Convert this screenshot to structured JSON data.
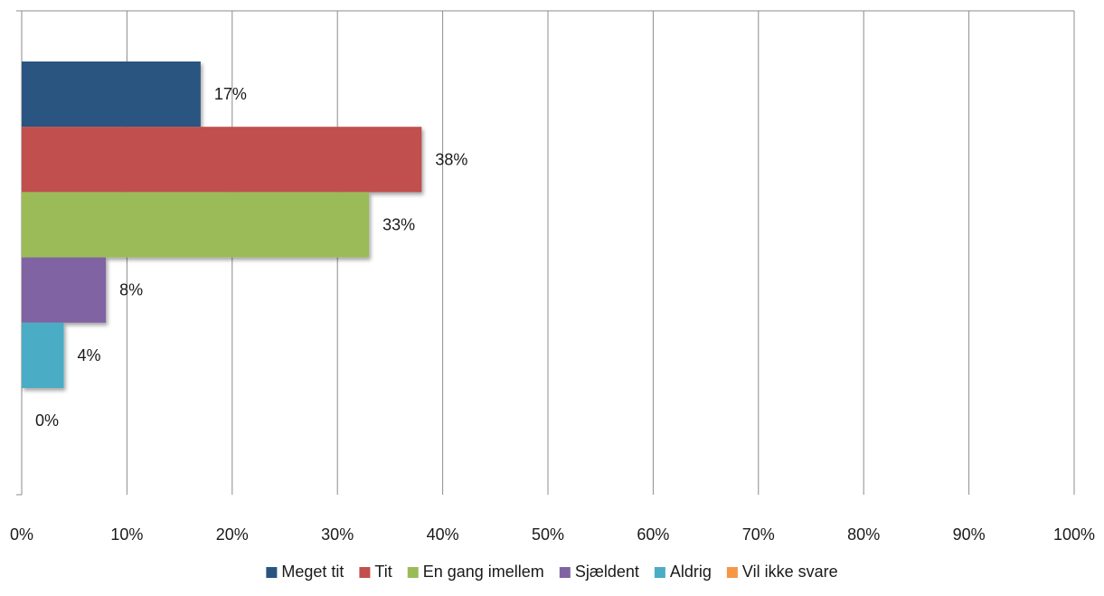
{
  "chart_data": {
    "type": "bar",
    "orientation": "horizontal",
    "categories": [
      ""
    ],
    "series": [
      {
        "name": "Meget tit",
        "values": [
          17
        ],
        "label": "17%",
        "color": "#2a5480"
      },
      {
        "name": "Tit",
        "values": [
          38
        ],
        "label": "38%",
        "color": "#c0504d"
      },
      {
        "name": "En gang imellem",
        "values": [
          33
        ],
        "label": "33%",
        "color": "#9bbb59"
      },
      {
        "name": "Sjældent",
        "values": [
          8
        ],
        "label": "8%",
        "color": "#8064a2"
      },
      {
        "name": "Aldrig",
        "values": [
          4
        ],
        "label": "4%",
        "color": "#4bacc6"
      },
      {
        "name": "Vil ikke svare",
        "values": [
          0
        ],
        "label": "0%",
        "color": "#f79646"
      }
    ],
    "xlim": [
      0,
      100
    ],
    "x_ticks": [
      "0%",
      "10%",
      "20%",
      "30%",
      "40%",
      "50%",
      "60%",
      "70%",
      "80%",
      "90%",
      "100%"
    ],
    "xlabel": "",
    "ylabel": "",
    "title": "",
    "grid": true,
    "legend_position": "bottom"
  }
}
